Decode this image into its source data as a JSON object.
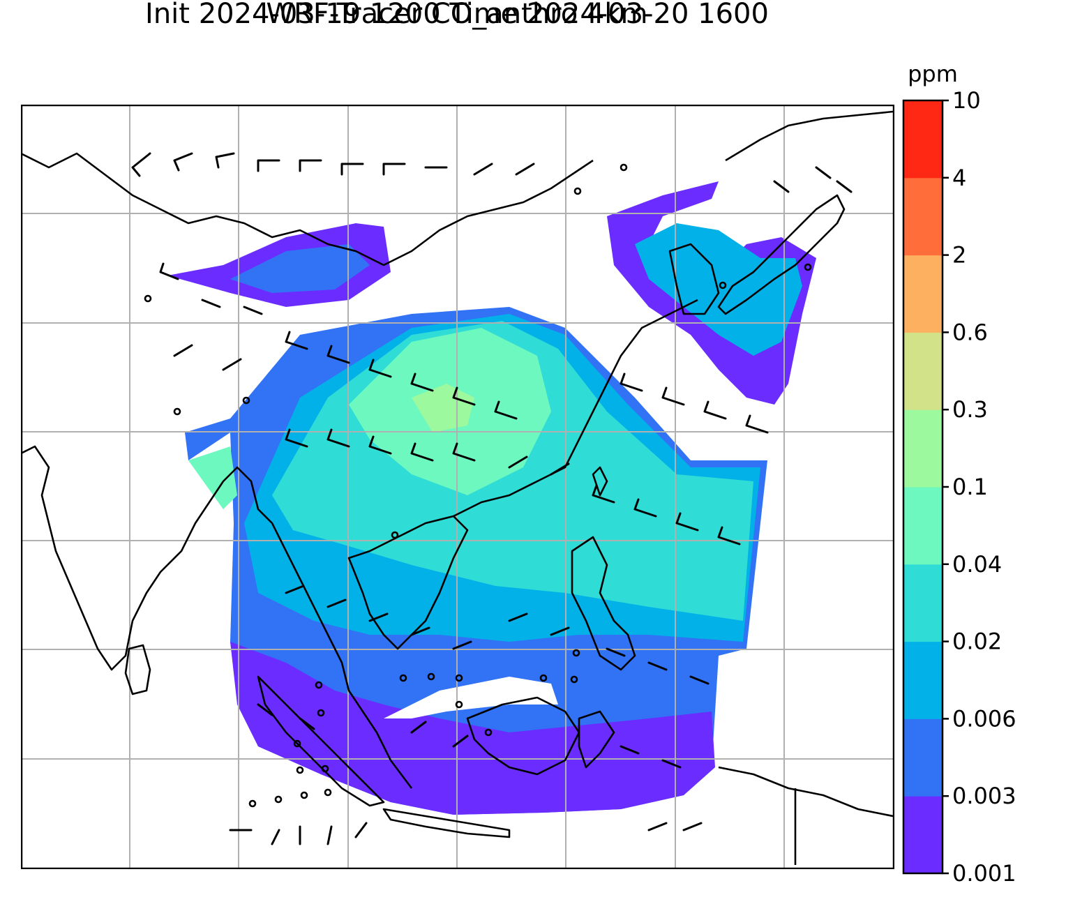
{
  "chart_data": {
    "type": "heatmap",
    "title_line1": "WRF-Tracer CO_anthro 4km",
    "title_line2": "Init 2024-03-19 1200 Time 2024-03-20 1600",
    "overlay": "wind barbs",
    "grid": true,
    "colorbar": {
      "label": "ppm",
      "levels": [
        "0.001",
        "0.003",
        "0.006",
        "0.02",
        "0.04",
        "0.1",
        "0.3",
        "0.6",
        "2",
        "4",
        "10"
      ],
      "colors": [
        "#6a2cff",
        "#3272f5",
        "#02b1e8",
        "#2fdcd6",
        "#6cf8bf",
        "#9cf99d",
        "#d1e289",
        "#fdb060",
        "#ff6e3a",
        "#ff2815"
      ]
    }
  }
}
